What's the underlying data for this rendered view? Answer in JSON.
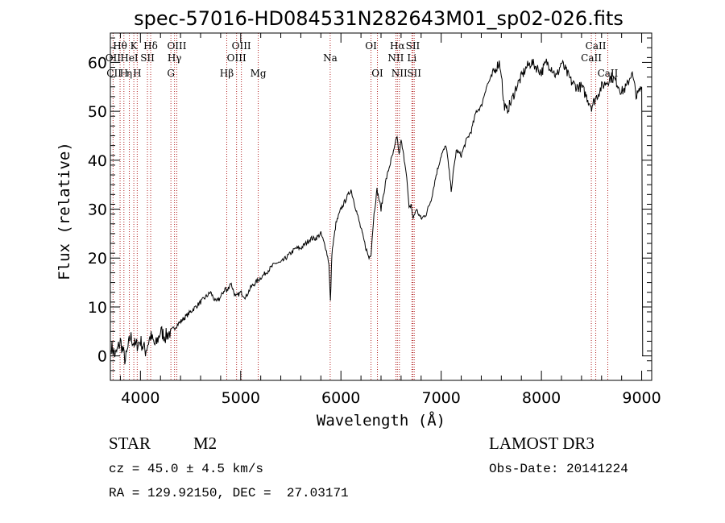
{
  "chart_data": {
    "type": "line",
    "title": "spec-57016-HD084531N282643M01_sp02-026.fits",
    "xlabel": "Wavelength (Å)",
    "ylabel": "Flux (relative)",
    "xlim": [
      3700,
      9100
    ],
    "ylim": [
      -5,
      66
    ],
    "x_ticks": [
      4000,
      5000,
      6000,
      7000,
      8000,
      9000
    ],
    "y_ticks": [
      0,
      10,
      20,
      30,
      40,
      50,
      60
    ],
    "grid": false,
    "series": [
      {
        "name": "Flux",
        "x": [
          3710,
          3750,
          3800,
          3850,
          3900,
          3950,
          4000,
          4050,
          4100,
          4150,
          4200,
          4250,
          4300,
          4350,
          4400,
          4450,
          4500,
          4550,
          4600,
          4650,
          4700,
          4750,
          4800,
          4850,
          4860,
          4900,
          4950,
          5000,
          5050,
          5100,
          5150,
          5200,
          5250,
          5300,
          5350,
          5400,
          5450,
          5500,
          5550,
          5600,
          5650,
          5700,
          5750,
          5800,
          5850,
          5880,
          5895,
          5910,
          5950,
          6000,
          6050,
          6100,
          6150,
          6200,
          6250,
          6280,
          6300,
          6330,
          6360,
          6400,
          6450,
          6500,
          6530,
          6560,
          6580,
          6600,
          6650,
          6680,
          6700,
          6720,
          6750,
          6800,
          6850,
          6900,
          6950,
          7000,
          7050,
          7100,
          7150,
          7200,
          7250,
          7300,
          7350,
          7400,
          7450,
          7500,
          7550,
          7580,
          7600,
          7620,
          7650,
          7700,
          7750,
          7800,
          7850,
          7900,
          7950,
          8000,
          8050,
          8100,
          8150,
          8200,
          8250,
          8300,
          8350,
          8400,
          8450,
          8500,
          8550,
          8600,
          8650,
          8700,
          8750,
          8800,
          8850,
          8900,
          8950,
          9000,
          9010
        ],
        "y": [
          2,
          0,
          3,
          -1,
          4,
          2,
          3,
          1,
          4,
          2,
          5,
          4,
          5,
          6,
          7,
          8,
          9,
          10,
          11,
          12,
          13,
          11,
          12,
          14,
          13,
          15,
          12,
          13,
          12,
          14,
          15,
          16,
          17,
          18,
          19,
          19,
          20,
          21,
          22,
          22,
          23,
          24,
          24,
          25,
          22,
          19,
          11,
          21,
          27,
          30,
          32,
          34,
          30,
          26,
          22,
          20,
          21,
          29,
          34,
          30,
          36,
          40,
          42,
          45,
          41,
          44,
          38,
          30,
          31,
          28,
          30,
          28,
          29,
          32,
          37,
          41,
          43,
          34,
          42,
          41,
          44,
          46,
          50,
          51,
          55,
          57,
          59,
          60,
          58,
          52,
          50,
          52,
          55,
          57,
          59,
          60,
          59,
          58,
          60,
          59,
          57,
          60,
          58,
          56,
          55,
          55,
          53,
          51,
          53,
          55,
          56,
          57,
          56,
          54,
          55,
          58,
          53,
          55,
          0
        ]
      }
    ],
    "line_markers": [
      {
        "label": "Hθ",
        "x": 3797,
        "row": 1
      },
      {
        "label": "OII",
        "x": 3727,
        "row": 2
      },
      {
        "label": "CII",
        "x": 3737,
        "row": 3
      },
      {
        "label": "H",
        "x": 3835,
        "row": 3
      },
      {
        "label": "η",
        "x": 3889,
        "row": 3
      },
      {
        "label": "K",
        "x": 3934,
        "row": 1
      },
      {
        "label": "HeI",
        "x": 3889,
        "row": 2
      },
      {
        "label": "SII",
        "x": 4070,
        "row": 2
      },
      {
        "label": "H",
        "x": 3968,
        "row": 3
      },
      {
        "label": "Hδ",
        "x": 4102,
        "row": 1
      },
      {
        "label": "OIII",
        "x": 4363,
        "row": 1
      },
      {
        "label": "Hγ",
        "x": 4340,
        "row": 2
      },
      {
        "label": "G",
        "x": 4304,
        "row": 3
      },
      {
        "label": "Hβ",
        "x": 4861,
        "row": 3
      },
      {
        "label": "OIII",
        "x": 5007,
        "row": 1
      },
      {
        "label": "OIII",
        "x": 4959,
        "row": 2
      },
      {
        "label": "Mg",
        "x": 5175,
        "row": 3
      },
      {
        "label": "Na",
        "x": 5893,
        "row": 2
      },
      {
        "label": "OI",
        "x": 6300,
        "row": 1
      },
      {
        "label": "OI",
        "x": 6364,
        "row": 3
      },
      {
        "label": "Hα",
        "x": 6563,
        "row": 1
      },
      {
        "label": "SII",
        "x": 6717,
        "row": 1
      },
      {
        "label": "NII",
        "x": 6548,
        "row": 2
      },
      {
        "label": "Li",
        "x": 6708,
        "row": 2
      },
      {
        "label": "NII",
        "x": 6583,
        "row": 3
      },
      {
        "label": "SII",
        "x": 6731,
        "row": 3
      },
      {
        "label": "CaII",
        "x": 8542,
        "row": 1
      },
      {
        "label": "CaII",
        "x": 8498,
        "row": 2
      },
      {
        "label": "CaII",
        "x": 8662,
        "row": 3
      }
    ],
    "marker_lines_x": [
      3727,
      3797,
      3835,
      3889,
      3934,
      3968,
      4070,
      4102,
      4304,
      4340,
      4363,
      4861,
      4959,
      5007,
      5175,
      5893,
      6300,
      6364,
      6548,
      6563,
      6583,
      6708,
      6717,
      6731,
      8498,
      8542,
      8662
    ]
  },
  "info": {
    "object_class": "STAR",
    "subclass": "M2",
    "survey": "LAMOST DR3",
    "cz": "cz = 45.0 ± 4.5 km/s",
    "obs_date": "Obs-Date: 20141224",
    "coords": "RA = 129.92150, DEC =  27.03171"
  },
  "colors": {
    "line": "#000000",
    "marker": "#b22222",
    "background": "#ffffff"
  }
}
